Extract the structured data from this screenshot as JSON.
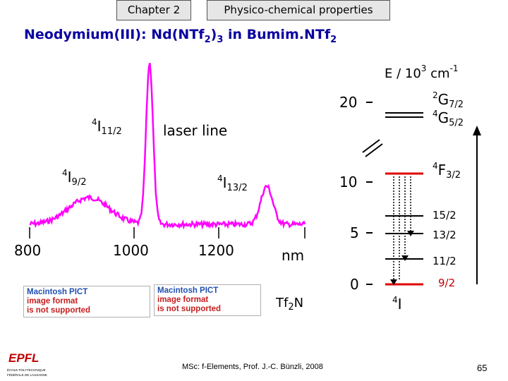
{
  "header": {
    "tab_chapter": "Chapter 2",
    "tab_section": "Physico-chemical properties"
  },
  "title": {
    "prefix": "Neodymium(III): Nd(NTf",
    "sub1": "2",
    "mid": ")",
    "sub2": "3",
    "suffix": " in Bumim.NTf",
    "sub3": "2"
  },
  "spectrum": {
    "label_4I112": {
      "sup": "4",
      "main": "I",
      "sub": "11/2"
    },
    "label_laser": "laser line",
    "label_4I92": {
      "sup": "4",
      "main": "I",
      "sub": "9/2"
    },
    "label_4I132": {
      "sup": "4",
      "main": "I",
      "sub": "13/2"
    },
    "x_ticks": [
      "800",
      "1000",
      "1200"
    ],
    "x_unit": "nm",
    "trace_color": "#ff00ff"
  },
  "energy_diagram": {
    "axis_title": {
      "pre": "E / 10",
      "sup1": "3",
      "mid": " cm",
      "sup2": "-1"
    },
    "ticks": [
      "20",
      "10",
      "5",
      "0"
    ],
    "level_2G72": {
      "sup": "2",
      "main": "G",
      "sub": "7/2"
    },
    "level_4G52": {
      "sup": "4",
      "main": "G",
      "sub": "5/2"
    },
    "level_4F32": {
      "sup": "4",
      "main": "F",
      "sub": "3/2"
    },
    "levels_4I": [
      "15/2",
      "13/2",
      "11/2",
      "9/2"
    ],
    "ground_term": {
      "sup": "4",
      "main": "I"
    },
    "highlight_color": "#e00000",
    "ground_label_color": "#c00000"
  },
  "pict_placeholder": {
    "line1": "Macintosh PICT",
    "line2": "image format",
    "line3": "is not supported"
  },
  "tf2n_label": {
    "main": "Tf",
    "sub": "2",
    "end": "N"
  },
  "footer": {
    "credit": "MSc: f-Elements,  Prof. J.-C. Bünzli, 2008",
    "page": "65",
    "logo_text": "EPFL",
    "logo_sub1": "ÉCOLE POLYTECHNIQUE",
    "logo_sub2": "FÉDÉRALE DE LAUSANNE"
  }
}
